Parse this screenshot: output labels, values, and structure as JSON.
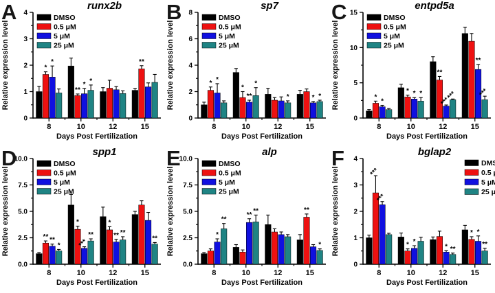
{
  "axes": {
    "x_label": "Days Post Fertilization",
    "y_label": "Relative expression level"
  },
  "legend_labels": [
    "DMSO",
    "0.5 μM",
    "5 μM",
    "25 μM"
  ],
  "colors": {
    "dmso": "#000000",
    "dose_05": "#EE1111",
    "dose_5": "#1010E0",
    "dose_25": "#1F8484"
  },
  "chart_data": [
    {
      "panel": "A",
      "type": "bar",
      "title": "runx2b",
      "xlabel": "Days Post Fertilization",
      "ylabel": "Relative expression level",
      "ylim": [
        0,
        4
      ],
      "ytick_values": [
        0,
        1,
        2,
        3,
        4
      ],
      "ytick_labels": [
        "0",
        "1",
        "2",
        "3",
        "4"
      ],
      "yminor_step": 0.5,
      "legend_position": "top-left",
      "categories": [
        "8",
        "10",
        "12",
        "15"
      ],
      "series": [
        {
          "name": "DMSO",
          "color": "#000000",
          "values": [
            1.0,
            1.97,
            1.0,
            1.05
          ],
          "errors": [
            0.2,
            0.3,
            0.15,
            0.07
          ],
          "sig": [
            "",
            "",
            "",
            ""
          ]
        },
        {
          "name": "0.5 μM",
          "color": "#EE1111",
          "values": [
            1.65,
            0.85,
            1.13,
            1.86
          ],
          "errors": [
            0.1,
            0.06,
            0.3,
            0.12
          ],
          "sig": [
            "*",
            "**",
            "",
            "**"
          ]
        },
        {
          "name": "5 μM",
          "color": "#1010E0",
          "values": [
            1.55,
            0.92,
            1.07,
            1.18
          ],
          "errors": [
            0.42,
            0.2,
            0.12,
            0.15
          ],
          "sig": [
            "*",
            "*",
            "",
            ""
          ]
        },
        {
          "name": "25 μM",
          "color": "#1F8484",
          "values": [
            0.95,
            1.05,
            0.93,
            1.35
          ],
          "errors": [
            0.15,
            0.2,
            0.1,
            0.3
          ],
          "sig": [
            "",
            "*",
            "",
            ""
          ]
        }
      ]
    },
    {
      "panel": "B",
      "type": "bar",
      "title": "sp7",
      "xlabel": "Days Post Fertilization",
      "ylabel": "Relative expression level",
      "ylim": [
        0,
        8
      ],
      "ytick_values": [
        0,
        2,
        4,
        6,
        8
      ],
      "ytick_labels": [
        "0",
        "2",
        "4",
        "6",
        "8"
      ],
      "yminor_step": 1,
      "legend_position": "top-left",
      "categories": [
        "8",
        "10",
        "12",
        "15"
      ],
      "series": [
        {
          "name": "DMSO",
          "color": "#000000",
          "values": [
            1.0,
            3.45,
            1.8,
            1.8
          ],
          "errors": [
            0.2,
            0.3,
            0.45,
            0.3
          ],
          "sig": [
            "",
            "",
            "",
            ""
          ]
        },
        {
          "name": "0.5 μM",
          "color": "#EE1111",
          "values": [
            2.1,
            1.55,
            1.35,
            2.0
          ],
          "errors": [
            0.25,
            0.45,
            0.2,
            0.2
          ],
          "sig": [
            "*",
            "*",
            "",
            ""
          ]
        },
        {
          "name": "5 μM",
          "color": "#1010E0",
          "values": [
            1.9,
            1.2,
            1.3,
            1.15
          ],
          "errors": [
            0.7,
            0.15,
            0.3,
            0.1
          ],
          "sig": [
            "*",
            "**",
            "",
            "*"
          ]
        },
        {
          "name": "25 μM",
          "color": "#1F8484",
          "values": [
            1.15,
            1.7,
            1.15,
            1.25
          ],
          "errors": [
            0.15,
            0.6,
            0.15,
            0.1
          ],
          "sig": [
            "",
            "*",
            "*",
            "*"
          ]
        }
      ]
    },
    {
      "panel": "C",
      "type": "bar",
      "title": "entpd5a",
      "xlabel": "Days Post Fertilization",
      "ylabel": "Relative expression level",
      "ylim": [
        0,
        15
      ],
      "ytick_values": [
        0,
        5,
        10,
        15
      ],
      "ytick_labels": [
        "0",
        "5",
        "10",
        "15"
      ],
      "yminor_step": 2.5,
      "legend_position": "top-left",
      "categories": [
        "8",
        "10",
        "12",
        "15"
      ],
      "series": [
        {
          "name": "DMSO",
          "color": "#000000",
          "values": [
            1.0,
            4.3,
            8.0,
            12.0
          ],
          "errors": [
            0.2,
            0.5,
            0.7,
            0.9
          ],
          "sig": [
            "",
            "",
            "",
            ""
          ]
        },
        {
          "name": "0.5 μM",
          "color": "#EE1111",
          "values": [
            2.1,
            3.0,
            5.4,
            10.9
          ],
          "errors": [
            0.3,
            0.25,
            0.5,
            1.1
          ],
          "sig": [
            "*",
            "*",
            "**",
            ""
          ]
        },
        {
          "name": "5 μM",
          "color": "#1010E0",
          "values": [
            1.6,
            2.7,
            1.7,
            6.9
          ],
          "errors": [
            0.2,
            0.2,
            0.15,
            0.7
          ],
          "sig": [
            "*",
            "*",
            "***",
            "**"
          ]
        },
        {
          "name": "25 μM",
          "color": "#1F8484",
          "values": [
            1.2,
            2.4,
            2.6,
            2.6
          ],
          "errors": [
            0.15,
            0.5,
            0.1,
            0.5
          ],
          "sig": [
            "",
            "*",
            "***",
            "***"
          ]
        }
      ]
    },
    {
      "panel": "D",
      "type": "bar",
      "title": "spp1",
      "xlabel": "Days Post Fertilization",
      "ylabel": "Relative expression level",
      "ylim": [
        0,
        10
      ],
      "ytick_values": [
        0,
        2.5,
        5,
        7.5,
        10
      ],
      "ytick_labels": [
        "0.0",
        "2.5",
        "5.0",
        "7.5",
        "10.0"
      ],
      "yminor_step": 1.25,
      "legend_position": "top-left",
      "categories": [
        "8",
        "10",
        "12",
        "15"
      ],
      "series": [
        {
          "name": "DMSO",
          "color": "#000000",
          "values": [
            1.0,
            5.6,
            4.5,
            4.7
          ],
          "errors": [
            0.1,
            1.0,
            0.9,
            0.3
          ],
          "sig": [
            "",
            "",
            "",
            ""
          ]
        },
        {
          "name": "0.5 μM",
          "color": "#EE1111",
          "values": [
            2.0,
            3.3,
            3.25,
            5.6
          ],
          "errors": [
            0.2,
            0.3,
            0.3,
            0.4
          ],
          "sig": [
            "**",
            "*",
            "*",
            ""
          ]
        },
        {
          "name": "5 μM",
          "color": "#1010E0",
          "values": [
            1.7,
            1.5,
            2.1,
            4.15
          ],
          "errors": [
            0.2,
            0.15,
            0.25,
            0.75
          ],
          "sig": [
            "**",
            "***",
            "**",
            ""
          ]
        },
        {
          "name": "25 μM",
          "color": "#1F8484",
          "values": [
            1.25,
            2.2,
            2.3,
            1.9
          ],
          "errors": [
            0.15,
            0.2,
            0.3,
            0.15
          ],
          "sig": [
            "*",
            "**",
            "**",
            "**"
          ]
        }
      ]
    },
    {
      "panel": "E",
      "type": "bar",
      "title": "alp",
      "xlabel": "Days Post Fertilization",
      "ylabel": "Relative expression level",
      "ylim": [
        0,
        10
      ],
      "ytick_values": [
        0,
        2.5,
        5,
        7.5,
        10
      ],
      "ytick_labels": [
        "0.0",
        "2.5",
        "5.0",
        "7.5",
        "10.0"
      ],
      "yminor_step": 1.25,
      "legend_position": "top-left",
      "categories": [
        "8",
        "10",
        "12",
        "15"
      ],
      "series": [
        {
          "name": "DMSO",
          "color": "#000000",
          "values": [
            1.0,
            1.6,
            3.75,
            2.3
          ],
          "errors": [
            0.1,
            0.25,
            0.9,
            0.5
          ],
          "sig": [
            "",
            "",
            "",
            ""
          ]
        },
        {
          "name": "0.5 μM",
          "color": "#EE1111",
          "values": [
            1.25,
            1.15,
            3.05,
            4.45
          ],
          "errors": [
            0.2,
            0.2,
            0.3,
            0.3
          ],
          "sig": [
            "",
            "",
            "",
            "**"
          ]
        },
        {
          "name": "5 μM",
          "color": "#1010E0",
          "values": [
            2.1,
            3.95,
            2.8,
            1.65
          ],
          "errors": [
            0.3,
            0.35,
            0.25,
            0.2
          ],
          "sig": [
            "*",
            "**",
            "",
            ""
          ]
        },
        {
          "name": "25 μM",
          "color": "#1F8484",
          "values": [
            3.35,
            4.0,
            2.6,
            1.3
          ],
          "errors": [
            0.5,
            0.65,
            0.2,
            0.15
          ],
          "sig": [
            "**",
            "**",
            "",
            "*"
          ]
        }
      ]
    },
    {
      "panel": "F",
      "type": "bar",
      "title": "bglap2",
      "xlabel": "Days Post Fertilization",
      "ylabel": "Relative expression level",
      "ylim": [
        0,
        4
      ],
      "ytick_values": [
        0,
        1,
        2,
        3,
        4
      ],
      "ytick_labels": [
        "0",
        "1",
        "2",
        "3",
        "4"
      ],
      "yminor_step": 0.5,
      "legend_position": "top-right",
      "categories": [
        "8",
        "10",
        "12",
        "15"
      ],
      "series": [
        {
          "name": "DMSO",
          "color": "#000000",
          "values": [
            1.0,
            1.03,
            0.93,
            1.3
          ],
          "errors": [
            0.1,
            0.15,
            0.1,
            0.17
          ],
          "sig": [
            "",
            "",
            "",
            ""
          ]
        },
        {
          "name": "0.5 μM",
          "color": "#EE1111",
          "values": [
            2.7,
            0.5,
            1.05,
            0.94
          ],
          "errors": [
            0.65,
            0.08,
            0.2,
            0.1
          ],
          "sig": [
            "***",
            "*",
            "",
            "*"
          ]
        },
        {
          "name": "5 μM",
          "color": "#1010E0",
          "values": [
            2.25,
            0.6,
            0.46,
            0.87
          ],
          "errors": [
            0.12,
            0.1,
            0.05,
            0.2
          ],
          "sig": [
            "***",
            "*",
            "*",
            "*"
          ]
        },
        {
          "name": "25 μM",
          "color": "#1F8484",
          "values": [
            1.12,
            0.87,
            0.37,
            0.5
          ],
          "errors": [
            0.05,
            0.15,
            0.05,
            0.1
          ],
          "sig": [
            "",
            "",
            "**",
            "**"
          ]
        }
      ]
    }
  ]
}
